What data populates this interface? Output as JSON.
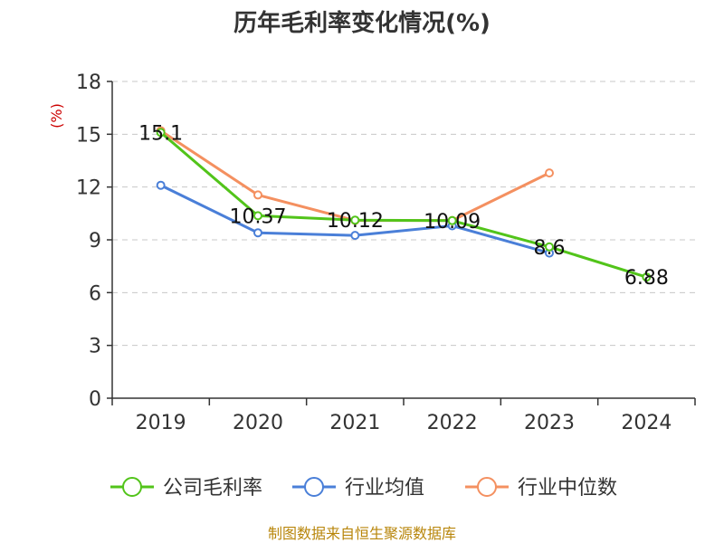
{
  "chart_data": {
    "type": "line",
    "title": "历年毛利率变化情况(%)",
    "ylabel": "(%)",
    "xlabel": "",
    "ylim": [
      0,
      18
    ],
    "yticks": [
      0,
      3,
      6,
      9,
      12,
      15,
      18
    ],
    "categories": [
      "2019",
      "2020",
      "2021",
      "2022",
      "2023",
      "2024"
    ],
    "grid": true,
    "legend_position": "bottom",
    "series": [
      {
        "name": "公司毛利率",
        "color": "#52c41a",
        "values": [
          15.1,
          10.37,
          10.12,
          10.09,
          8.6,
          6.88
        ],
        "labels": [
          "15.1",
          "10.37",
          "10.12",
          "10.09",
          "8.6",
          "6.88"
        ]
      },
      {
        "name": "行业均值",
        "color": "#4a7fd8",
        "values": [
          12.1,
          9.4,
          9.25,
          9.8,
          8.25,
          null
        ]
      },
      {
        "name": "行业中位数",
        "color": "#f49060",
        "values": [
          15.2,
          11.55,
          10.1,
          10.1,
          12.8,
          null
        ]
      }
    ],
    "source": "制图数据来自恒生聚源数据库"
  }
}
